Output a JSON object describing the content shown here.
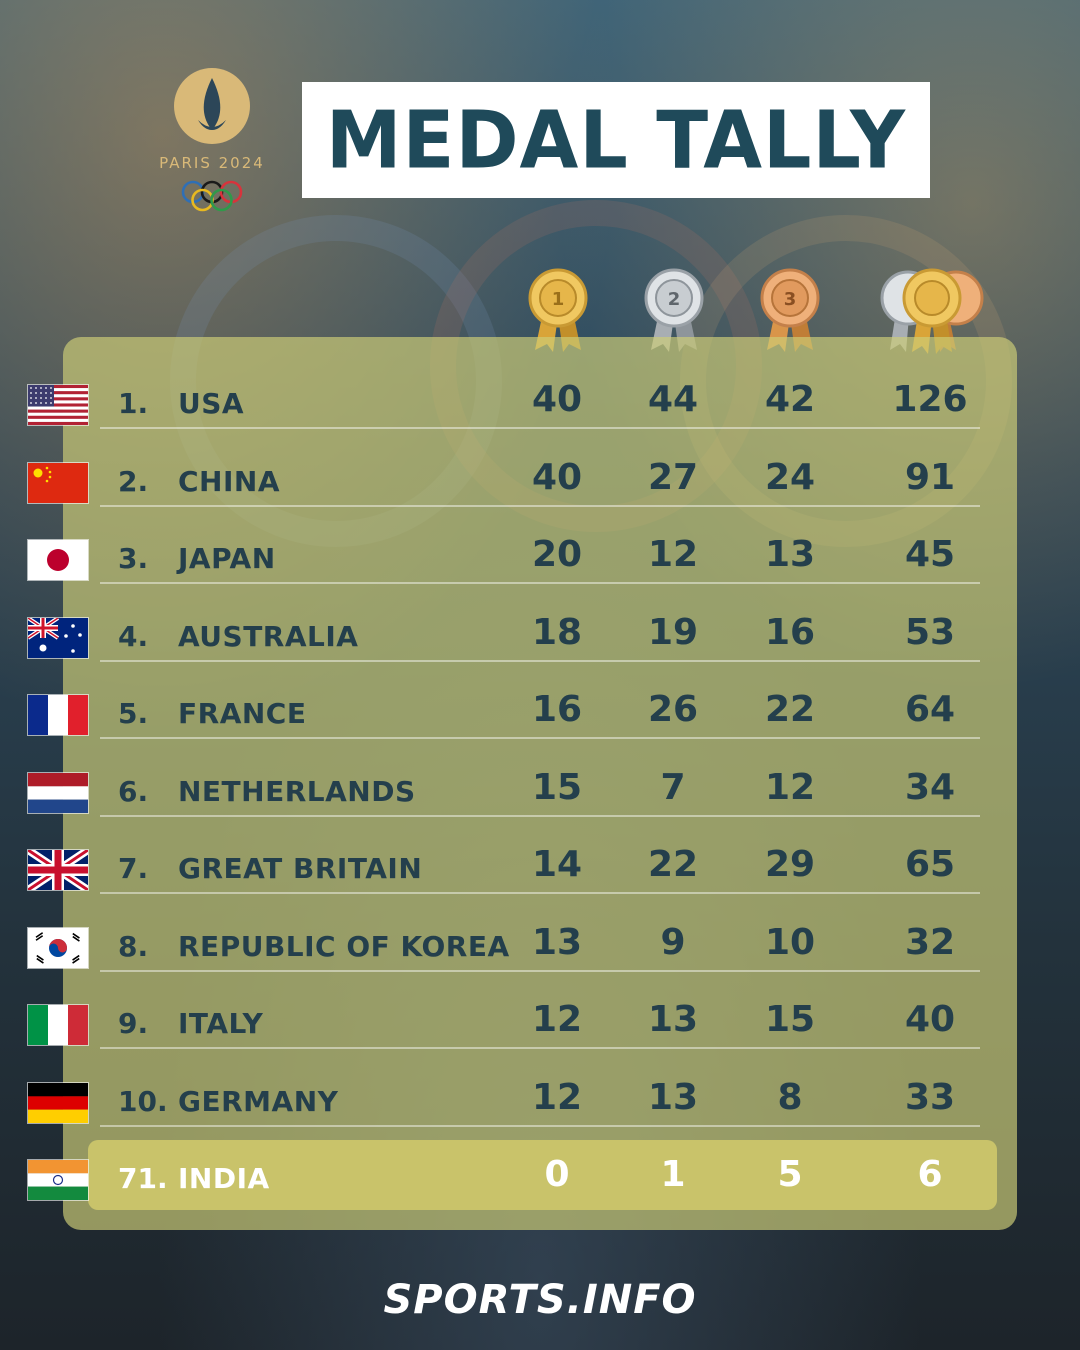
{
  "logo": {
    "text": "PARIS 2024"
  },
  "title": "MEDAL TALLY",
  "columns": [
    {
      "icon": "gold-medal-icon",
      "label": "1"
    },
    {
      "icon": "silver-medal-icon",
      "label": "2"
    },
    {
      "icon": "bronze-medal-icon",
      "label": "3"
    },
    {
      "icon": "total-medals-icon",
      "label": ""
    }
  ],
  "rows": [
    {
      "rank": "1.",
      "country": "USA",
      "flag": "us-flag-icon",
      "gold": "40",
      "silver": "44",
      "bronze": "42",
      "total": "126"
    },
    {
      "rank": "2.",
      "country": "CHINA",
      "flag": "china-flag-icon",
      "gold": "40",
      "silver": "27",
      "bronze": "24",
      "total": "91"
    },
    {
      "rank": "3.",
      "country": "JAPAN",
      "flag": "japan-flag-icon",
      "gold": "20",
      "silver": "12",
      "bronze": "13",
      "total": "45"
    },
    {
      "rank": "4.",
      "country": "AUSTRALIA",
      "flag": "australia-flag-icon",
      "gold": "18",
      "silver": "19",
      "bronze": "16",
      "total": "53"
    },
    {
      "rank": "5.",
      "country": "FRANCE",
      "flag": "france-flag-icon",
      "gold": "16",
      "silver": "26",
      "bronze": "22",
      "total": "64"
    },
    {
      "rank": "6.",
      "country": "NETHERLANDS",
      "flag": "netherlands-flag-icon",
      "gold": "15",
      "silver": "7",
      "bronze": "12",
      "total": "34"
    },
    {
      "rank": "7.",
      "country": "GREAT BRITAIN",
      "flag": "great-britain-flag-icon",
      "gold": "14",
      "silver": "22",
      "bronze": "29",
      "total": "65"
    },
    {
      "rank": "8.",
      "country": "REPUBLIC OF KOREA",
      "flag": "korea-flag-icon",
      "gold": "13",
      "silver": "9",
      "bronze": "10",
      "total": "32"
    },
    {
      "rank": "9.",
      "country": "ITALY",
      "flag": "italy-flag-icon",
      "gold": "12",
      "silver": "13",
      "bronze": "15",
      "total": "40"
    },
    {
      "rank": "10.",
      "country": "GERMANY",
      "flag": "germany-flag-icon",
      "gold": "12",
      "silver": "13",
      "bronze": "8",
      "total": "33"
    }
  ],
  "highlight": {
    "rank": "71.",
    "country": "INDIA",
    "flag": "india-flag-icon",
    "gold": "0",
    "silver": "1",
    "bronze": "5",
    "total": "6"
  },
  "footer": "SPORTS.INFO",
  "colors": {
    "title_text": "#1f4a5a",
    "table_text": "#243f4c",
    "panel": "#cdcd78",
    "highlight": "#c9c36a",
    "logo_gold": "#d9b978"
  }
}
